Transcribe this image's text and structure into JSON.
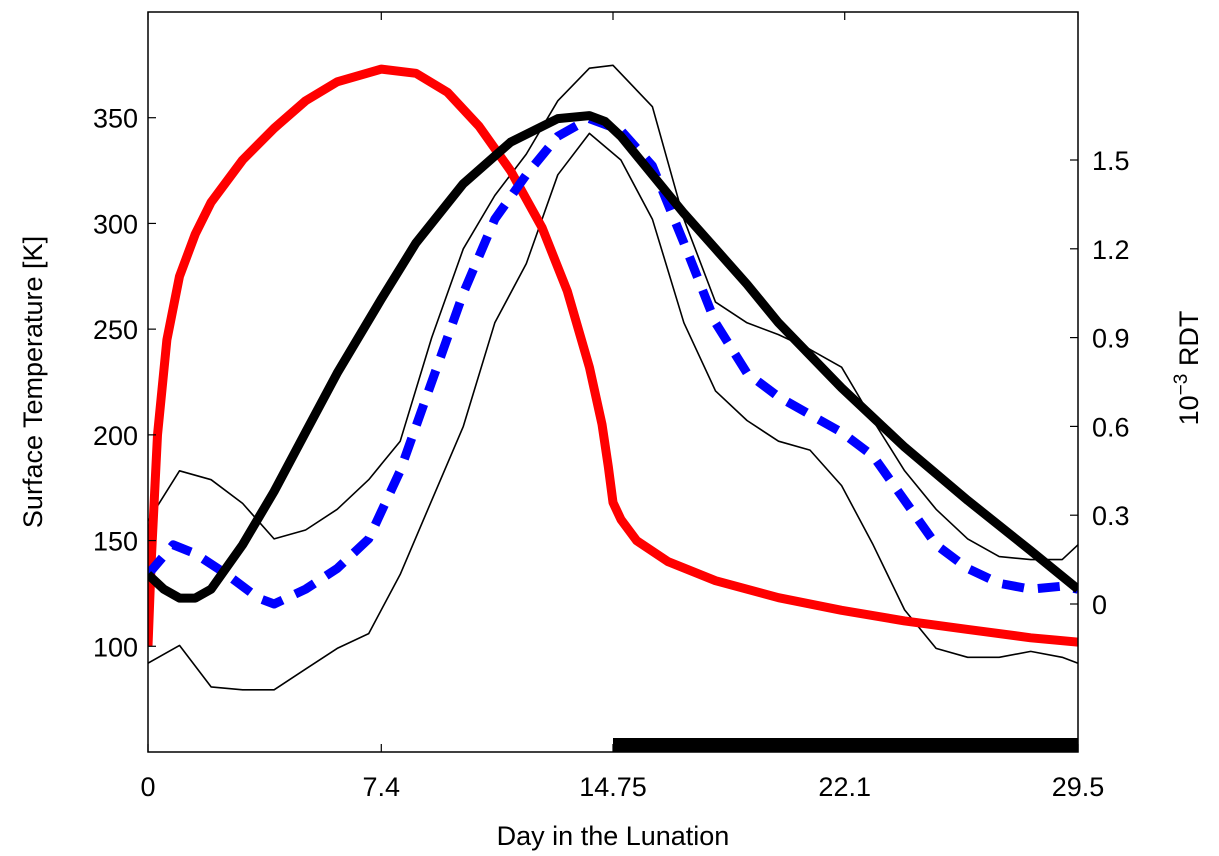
{
  "chart_data": {
    "type": "line",
    "title": "",
    "xlabel": "Day in the Lunation",
    "ylabel_left": "Surface Temperature [K]",
    "ylabel_right_base": "10",
    "ylabel_right_exponent": "−3",
    "ylabel_right_unit": " RDT",
    "xlim": [
      0,
      29.5
    ],
    "ylim_left": [
      50,
      400
    ],
    "ylim_right": [
      -0.5,
      2.0
    ],
    "x_ticks": [
      0,
      7.4,
      14.75,
      22.1,
      29.5
    ],
    "x_tick_labels": [
      "0",
      "7.4",
      "14.75",
      "22.1",
      "29.5"
    ],
    "y_left_ticks": [
      100,
      150,
      200,
      250,
      300,
      350
    ],
    "y_left_tick_labels": [
      "100",
      "150",
      "200",
      "250",
      "300",
      "350"
    ],
    "y_right_ticks": [
      0,
      0.3,
      0.6,
      0.9,
      1.2,
      1.5
    ],
    "y_right_tick_labels": [
      "0",
      "0.3",
      "0.6",
      "0.9",
      "1.2",
      "1.5"
    ],
    "grid": false,
    "night_bar": {
      "x_start": 14.75,
      "x_end": 29.5,
      "color": "#000000"
    },
    "series": [
      {
        "axis": "left",
        "color": "#ff0000",
        "style": "solid-thick",
        "x": [
          0,
          0.1,
          0.3,
          0.6,
          1.0,
          1.5,
          2.0,
          3.0,
          4.0,
          5.0,
          6.0,
          7.4,
          8.5,
          9.5,
          10.5,
          11.5,
          12.5,
          13.3,
          14.0,
          14.4,
          14.6,
          14.75,
          15.0,
          15.5,
          16.5,
          18.0,
          20.0,
          22.0,
          24.0,
          26.0,
          28.0,
          29.5
        ],
        "y": [
          100,
          140,
          200,
          245,
          275,
          295,
          310,
          330,
          345,
          358,
          367,
          373,
          371,
          362,
          346,
          325,
          298,
          268,
          232,
          205,
          185,
          168,
          160,
          150,
          140,
          131,
          123,
          117,
          112,
          108,
          104,
          102
        ]
      },
      {
        "axis": "right",
        "color": "#000000",
        "style": "solid-thick",
        "x": [
          0,
          0.5,
          1.0,
          1.5,
          2.0,
          3.0,
          4.0,
          5.0,
          6.0,
          7.4,
          8.5,
          10.0,
          11.5,
          13.0,
          14.0,
          14.5,
          15.0,
          16.0,
          17.0,
          18.0,
          19.0,
          20.0,
          22.0,
          24.0,
          26.0,
          28.0,
          29.5
        ],
        "y": [
          0.1,
          0.05,
          0.02,
          0.02,
          0.05,
          0.2,
          0.38,
          0.58,
          0.78,
          1.03,
          1.22,
          1.42,
          1.56,
          1.64,
          1.65,
          1.63,
          1.58,
          1.45,
          1.32,
          1.2,
          1.08,
          0.95,
          0.73,
          0.53,
          0.35,
          0.18,
          0.05
        ]
      },
      {
        "axis": "right",
        "color": "#0000ff",
        "style": "dashed-thick",
        "x": [
          0,
          0.8,
          1.5,
          2.5,
          3.5,
          4.0,
          5.0,
          6.0,
          7.0,
          8.0,
          9.0,
          10.0,
          11.0,
          12.0,
          13.0,
          14.0,
          15.0,
          16.0,
          17.0,
          18.0,
          19.0,
          20.0,
          21.0,
          22.0,
          23.0,
          24.0,
          25.0,
          26.0,
          27.0,
          28.0,
          29.0,
          29.5
        ],
        "y": [
          0.1,
          0.2,
          0.17,
          0.1,
          0.02,
          0.0,
          0.05,
          0.12,
          0.22,
          0.45,
          0.75,
          1.05,
          1.3,
          1.45,
          1.58,
          1.64,
          1.6,
          1.48,
          1.22,
          0.95,
          0.78,
          0.7,
          0.64,
          0.58,
          0.5,
          0.35,
          0.2,
          0.12,
          0.07,
          0.05,
          0.06,
          0.05
        ]
      },
      {
        "axis": "right",
        "color": "#000000",
        "style": "solid-thin",
        "x": [
          0,
          1.0,
          2.0,
          3.0,
          4.0,
          5.0,
          6.0,
          7.0,
          8.0,
          9.0,
          10.0,
          11.0,
          12.0,
          13.0,
          14.0,
          14.75,
          16.0,
          17.0,
          18.0,
          19.0,
          20.0,
          21.0,
          22.0,
          23.0,
          24.0,
          25.0,
          26.0,
          27.0,
          28.0,
          29.0,
          29.5
        ],
        "y": [
          0.28,
          0.45,
          0.42,
          0.34,
          0.22,
          0.25,
          0.32,
          0.42,
          0.55,
          0.9,
          1.2,
          1.38,
          1.52,
          1.7,
          1.81,
          1.82,
          1.68,
          1.3,
          1.02,
          0.95,
          0.91,
          0.86,
          0.8,
          0.62,
          0.45,
          0.32,
          0.22,
          0.16,
          0.15,
          0.15,
          0.2
        ]
      },
      {
        "axis": "right",
        "color": "#000000",
        "style": "solid-thin",
        "x": [
          0,
          1.0,
          2.0,
          3.0,
          4.0,
          5.0,
          6.0,
          7.0,
          8.0,
          9.0,
          10.0,
          11.0,
          12.0,
          13.0,
          14.0,
          15.0,
          16.0,
          17.0,
          18.0,
          19.0,
          20.0,
          21.0,
          22.0,
          23.0,
          24.0,
          25.0,
          26.0,
          27.0,
          28.0,
          29.0,
          29.5
        ],
        "y": [
          -0.2,
          -0.14,
          -0.28,
          -0.29,
          -0.29,
          -0.22,
          -0.15,
          -0.1,
          0.1,
          0.35,
          0.6,
          0.95,
          1.15,
          1.45,
          1.59,
          1.5,
          1.3,
          0.95,
          0.72,
          0.62,
          0.55,
          0.52,
          0.4,
          0.2,
          -0.02,
          -0.15,
          -0.18,
          -0.18,
          -0.16,
          -0.18,
          -0.2
        ]
      }
    ]
  }
}
